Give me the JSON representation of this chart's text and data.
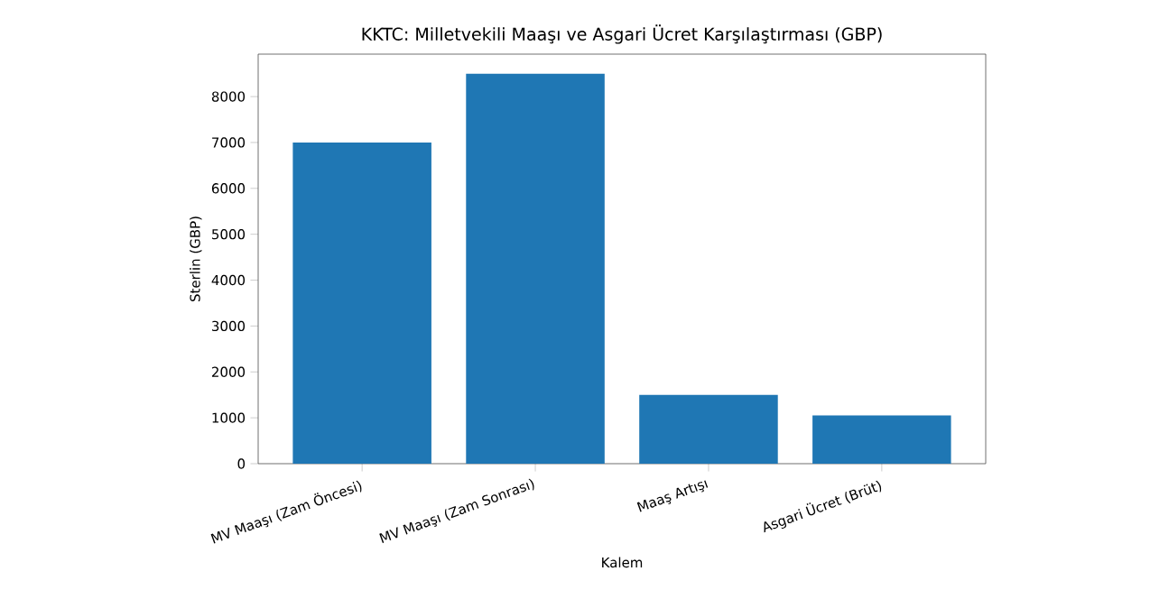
{
  "chart_data": {
    "type": "bar",
    "title": "KKTC: Milletvekili Maaşı ve Asgari Ücret Karşılaştırması (GBP)",
    "xlabel": "Kalem",
    "ylabel": "Sterlin (GBP)",
    "categories": [
      "MV Maaşı (Zam Öncesi)",
      "MV Maaşı (Zam Sonrası)",
      "Maaş Artışı",
      "Asgari Ücret (Brüt)"
    ],
    "values": [
      7000,
      8500,
      1500,
      1050
    ],
    "color": "#1f77b4",
    "ylim": [
      0,
      8925
    ],
    "yticks": [
      0,
      1000,
      2000,
      3000,
      4000,
      5000,
      6000,
      7000,
      8000
    ],
    "grid": false
  }
}
